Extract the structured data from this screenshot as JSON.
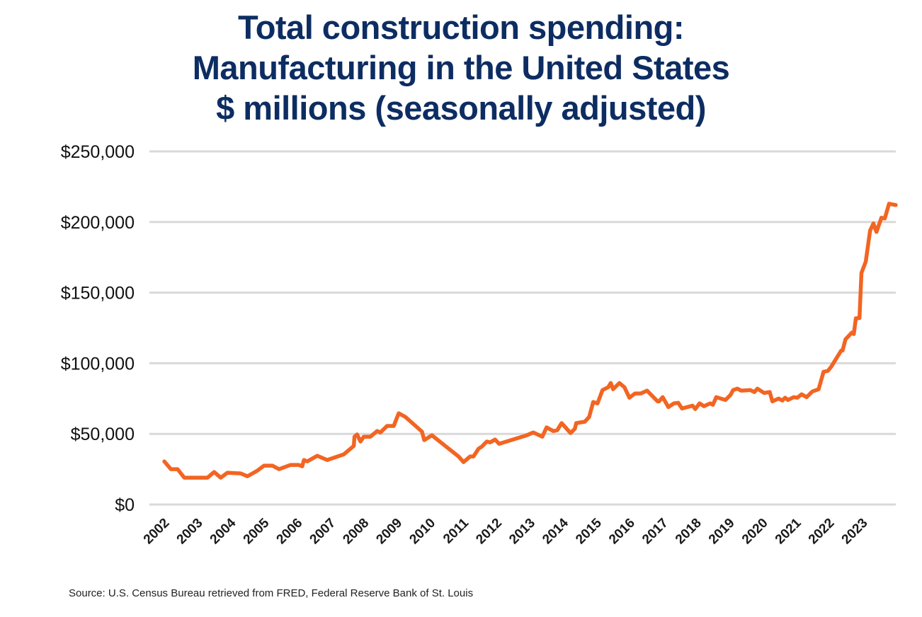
{
  "chart_data": {
    "type": "line",
    "title": [
      "Total construction spending:",
      "Manufacturing in the United States",
      "$ millions (seasonally adjusted)"
    ],
    "xlabel": "",
    "ylabel": "",
    "ylim": [
      0,
      250000
    ],
    "xlim": [
      2002,
      2024
    ],
    "grid": true,
    "y_ticks": [
      0,
      50000,
      100000,
      150000,
      200000,
      250000
    ],
    "y_tick_labels": [
      "$0",
      "$50,000",
      "$100,000",
      "$150,000",
      "$200,000",
      "$250,000"
    ],
    "x_tick_labels": [
      "2002",
      "2003",
      "2004",
      "2005",
      "2006",
      "2007",
      "2008",
      "2009",
      "2010",
      "2011",
      "2012",
      "2013",
      "2014",
      "2015",
      "2016",
      "2017",
      "2018",
      "2019",
      "2020",
      "2021",
      "2022",
      "2023"
    ],
    "series_color": "#f26522",
    "points": [
      [
        2002.0,
        30500
      ],
      [
        2002.2,
        25000
      ],
      [
        2002.4,
        25000
      ],
      [
        2002.6,
        19000
      ],
      [
        2003.3,
        19000
      ],
      [
        2003.5,
        23000
      ],
      [
        2003.7,
        19000
      ],
      [
        2003.9,
        22500
      ],
      [
        2004.3,
        22000
      ],
      [
        2004.5,
        20000
      ],
      [
        2004.8,
        24000
      ],
      [
        2005.0,
        27500
      ],
      [
        2005.25,
        27500
      ],
      [
        2005.45,
        25000
      ],
      [
        2005.8,
        28000
      ],
      [
        2006.05,
        28000
      ],
      [
        2006.15,
        27000
      ],
      [
        2006.2,
        31500
      ],
      [
        2006.3,
        30500
      ],
      [
        2006.6,
        34500
      ],
      [
        2006.9,
        31500
      ],
      [
        2007.4,
        35500
      ],
      [
        2007.6,
        39500
      ],
      [
        2007.7,
        41500
      ],
      [
        2007.72,
        48000
      ],
      [
        2007.8,
        49600
      ],
      [
        2007.9,
        44600
      ],
      [
        2008.0,
        48000
      ],
      [
        2008.2,
        48000
      ],
      [
        2008.4,
        52000
      ],
      [
        2008.5,
        51000
      ],
      [
        2008.7,
        55600
      ],
      [
        2008.9,
        55600
      ],
      [
        2009.05,
        64600
      ],
      [
        2009.25,
        62000
      ],
      [
        2009.75,
        51600
      ],
      [
        2009.82,
        45600
      ],
      [
        2010.05,
        49000
      ],
      [
        2010.85,
        34000
      ],
      [
        2011.0,
        30000
      ],
      [
        2011.2,
        34000
      ],
      [
        2011.3,
        34000
      ],
      [
        2011.45,
        39500
      ],
      [
        2011.55,
        41000
      ],
      [
        2011.7,
        44600
      ],
      [
        2011.8,
        44000
      ],
      [
        2011.95,
        46000
      ],
      [
        2012.07,
        43000
      ],
      [
        2012.9,
        49000
      ],
      [
        2013.1,
        51000
      ],
      [
        2013.37,
        48000
      ],
      [
        2013.5,
        54600
      ],
      [
        2013.7,
        52000
      ],
      [
        2013.82,
        52600
      ],
      [
        2013.95,
        57600
      ],
      [
        2014.22,
        50600
      ],
      [
        2014.35,
        53600
      ],
      [
        2014.39,
        57600
      ],
      [
        2014.65,
        58600
      ],
      [
        2014.78,
        62000
      ],
      [
        2014.9,
        72600
      ],
      [
        2015.03,
        71600
      ],
      [
        2015.18,
        81000
      ],
      [
        2015.35,
        83000
      ],
      [
        2015.43,
        86000
      ],
      [
        2015.5,
        81600
      ],
      [
        2015.69,
        86000
      ],
      [
        2015.84,
        83000
      ],
      [
        2015.99,
        75600
      ],
      [
        2016.16,
        78600
      ],
      [
        2016.33,
        78600
      ],
      [
        2016.52,
        80600
      ],
      [
        2016.84,
        73000
      ],
      [
        2016.88,
        73000
      ],
      [
        2016.99,
        76000
      ],
      [
        2017.16,
        69000
      ],
      [
        2017.33,
        71600
      ],
      [
        2017.46,
        72000
      ],
      [
        2017.57,
        68000
      ],
      [
        2017.89,
        70000
      ],
      [
        2017.97,
        67600
      ],
      [
        2018.1,
        71600
      ],
      [
        2018.23,
        69600
      ],
      [
        2018.42,
        71600
      ],
      [
        2018.5,
        70600
      ],
      [
        2018.6,
        76000
      ],
      [
        2018.88,
        74000
      ],
      [
        2019.03,
        77600
      ],
      [
        2019.11,
        81000
      ],
      [
        2019.24,
        82000
      ],
      [
        2019.35,
        80600
      ],
      [
        2019.62,
        81000
      ],
      [
        2019.75,
        79600
      ],
      [
        2019.84,
        82000
      ],
      [
        2020.04,
        79000
      ],
      [
        2020.21,
        79600
      ],
      [
        2020.29,
        73000
      ],
      [
        2020.48,
        75000
      ],
      [
        2020.59,
        73600
      ],
      [
        2020.67,
        75600
      ],
      [
        2020.76,
        74000
      ],
      [
        2020.93,
        76000
      ],
      [
        2021.04,
        75600
      ],
      [
        2021.17,
        78000
      ],
      [
        2021.32,
        76000
      ],
      [
        2021.49,
        80000
      ],
      [
        2021.68,
        81600
      ],
      [
        2021.83,
        94000
      ],
      [
        2021.96,
        94600
      ],
      [
        2022.06,
        97600
      ],
      [
        2022.36,
        109000
      ],
      [
        2022.4,
        109000
      ],
      [
        2022.49,
        117000
      ],
      [
        2022.68,
        121700
      ],
      [
        2022.74,
        120700
      ],
      [
        2022.8,
        131800
      ],
      [
        2022.91,
        132000
      ],
      [
        2022.97,
        164000
      ],
      [
        2023.1,
        172000
      ],
      [
        2023.23,
        194000
      ],
      [
        2023.33,
        199000
      ],
      [
        2023.42,
        193000
      ],
      [
        2023.57,
        203000
      ],
      [
        2023.67,
        202500
      ],
      [
        2023.8,
        213000
      ],
      [
        2024.0,
        212000
      ]
    ]
  },
  "source": "Source: U.S. Census Bureau retrieved from FRED, Federal Reserve Bank of St. Louis"
}
